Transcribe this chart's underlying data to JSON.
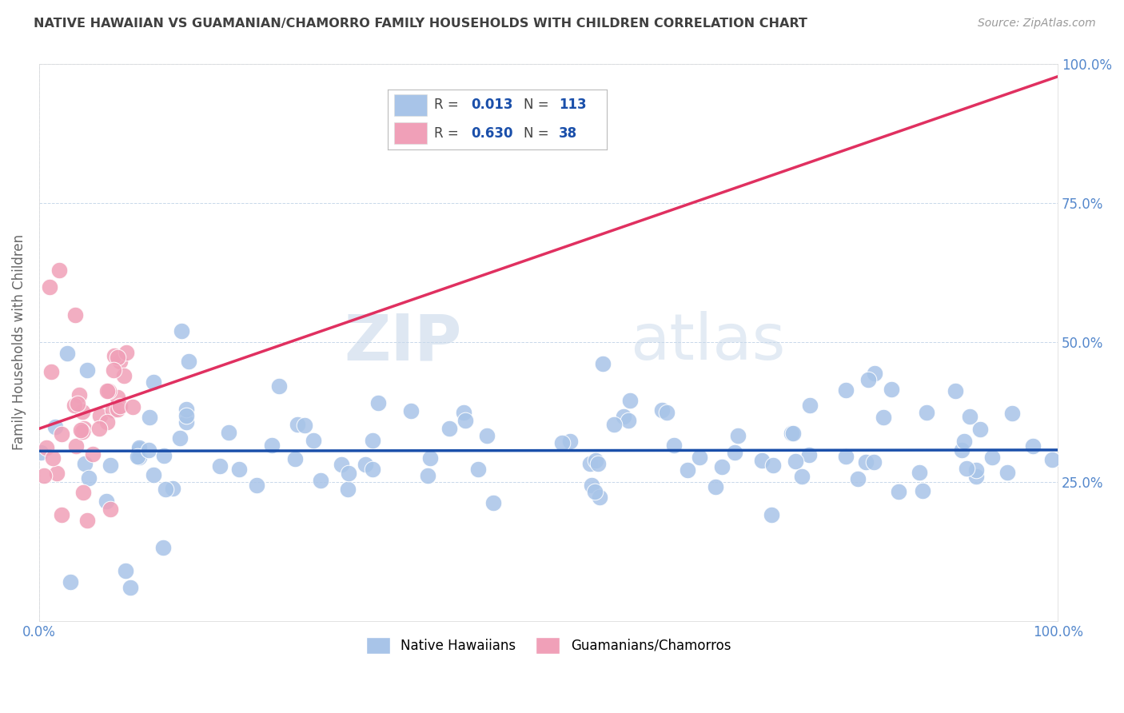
{
  "title": "NATIVE HAWAIIAN VS GUAMANIAN/CHAMORRO FAMILY HOUSEHOLDS WITH CHILDREN CORRELATION CHART",
  "source": "Source: ZipAtlas.com",
  "ylabel": "Family Households with Children",
  "watermark_zip": "ZIP",
  "watermark_atlas": "atlas",
  "blue_R": 0.013,
  "blue_N": 113,
  "pink_R": 0.63,
  "pink_N": 38,
  "blue_color": "#a8c4e8",
  "pink_color": "#f0a0b8",
  "blue_line_color": "#1a4faa",
  "pink_line_color": "#e03060",
  "title_color": "#404040",
  "source_color": "#999999",
  "legend_R_N_color": "#1a4faa",
  "axis_tick_color": "#5588cc",
  "background_color": "#ffffff",
  "grid_color": "#c8d8ea",
  "xmin": 0.0,
  "xmax": 1.0,
  "ymin": 0.0,
  "ymax": 1.0,
  "yticks": [
    0.0,
    0.25,
    0.5,
    0.75,
    1.0
  ],
  "ytick_labels": [
    "",
    "25.0%",
    "50.0%",
    "75.0%",
    "100.0%"
  ],
  "xtick_labels_left": [
    "0.0%"
  ],
  "xtick_labels_right": [
    "100.0%"
  ],
  "legend_bottom_labels": [
    "Native Hawaiians",
    "Guamanians/Chamorros"
  ]
}
